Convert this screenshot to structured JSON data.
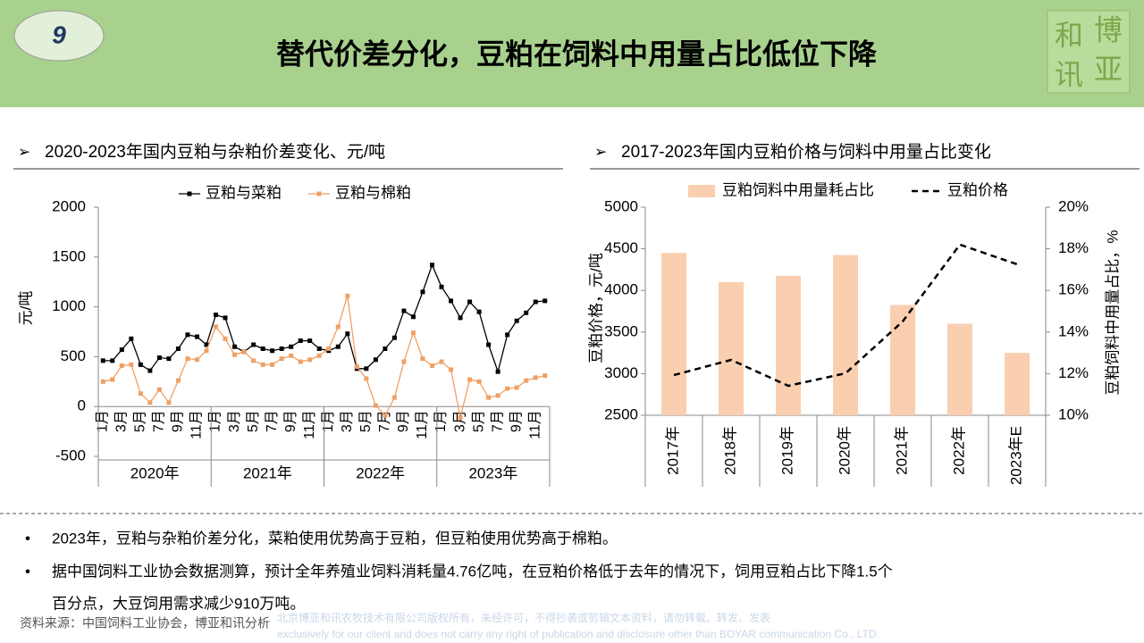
{
  "header": {
    "badge": "9",
    "title": "替代价差分化，豆粕在饲料中用量占比低位下降",
    "logo": [
      "博",
      "亚",
      "和",
      "讯"
    ]
  },
  "sections": [
    "2020-2023年国内豆粕与杂粕价差变化、元/吨",
    "2017-2023年国内豆粕价格与饲料中用量占比变化"
  ],
  "chart_data": [
    {
      "type": "line",
      "y_label": "元/吨",
      "categories": [
        "1月",
        null,
        "3月",
        null,
        "5月",
        null,
        "7月",
        null,
        "9月",
        null,
        "11月",
        null,
        "1月",
        null,
        "3月",
        null,
        "5月",
        null,
        "7月",
        null,
        "9月",
        null,
        "11月",
        null,
        "1月",
        null,
        "3月",
        null,
        "5月",
        null,
        "7月",
        null,
        "9月",
        null,
        "11月",
        null,
        "1月",
        null,
        "3月",
        null,
        "5月",
        null,
        "7月",
        null,
        "9月",
        null,
        "11月",
        null
      ],
      "groups": [
        "2020年",
        "2021年",
        "2022年",
        "2023年"
      ],
      "series": [
        {
          "name": "豆粕与菜粕",
          "color": "#000000",
          "values": [
            460,
            460,
            570,
            680,
            420,
            360,
            490,
            480,
            580,
            720,
            700,
            620,
            920,
            890,
            600,
            550,
            620,
            580,
            560,
            580,
            600,
            660,
            660,
            580,
            560,
            600,
            730,
            380,
            380,
            470,
            580,
            690,
            960,
            900,
            1150,
            1420,
            1200,
            1060,
            890,
            1050,
            950,
            620,
            350,
            720,
            860,
            940,
            1050,
            1060
          ]
        },
        {
          "name": "豆粕与棉粕",
          "color": "#f0a064",
          "values": [
            250,
            270,
            410,
            420,
            130,
            40,
            170,
            40,
            260,
            480,
            470,
            560,
            800,
            680,
            520,
            550,
            460,
            420,
            420,
            480,
            510,
            450,
            470,
            510,
            580,
            800,
            1110,
            400,
            280,
            10,
            -90,
            90,
            450,
            740,
            480,
            410,
            450,
            370,
            -110,
            270,
            250,
            90,
            110,
            180,
            190,
            260,
            290,
            310
          ]
        }
      ],
      "ylim": [
        -500,
        2000
      ],
      "yticks": [
        -500,
        0,
        500,
        1000,
        1500,
        2000
      ],
      "legend": "top"
    },
    {
      "type": "combo",
      "y_label": "豆粕价格，元/吨",
      "y2_label": "豆粕饲料中用量占比，%",
      "categories": [
        "2017年",
        "2018年",
        "2019年",
        "2020年",
        "2021年",
        "2022年",
        "2023年E"
      ],
      "series": [
        {
          "name": "豆粕饲料中用量耗占比",
          "type": "bar",
          "axis": "y2",
          "color": "#f9cfb0",
          "values": [
            17.8,
            16.4,
            16.7,
            17.7,
            15.3,
            14.4,
            13.0
          ]
        },
        {
          "name": "豆粕价格",
          "type": "line",
          "color": "#000000",
          "dashed": true,
          "values": [
            2983,
            3165,
            2854,
            3004,
            3627,
            4550,
            4314
          ]
        }
      ],
      "ylim": [
        2500,
        5000
      ],
      "yticks": [
        2500,
        3000,
        3500,
        4000,
        4500,
        5000
      ],
      "y2lim": [
        10,
        20
      ],
      "y2ticks": [
        {
          "value": 10,
          "label": "10%"
        },
        {
          "value": 12,
          "label": "12%"
        },
        {
          "value": 14,
          "label": "14%"
        },
        {
          "value": 16,
          "label": "16%"
        },
        {
          "value": 18,
          "label": "18%"
        },
        {
          "value": 20,
          "label": "20%"
        }
      ],
      "legend": "top"
    }
  ],
  "bullets": [
    "2023年，豆粕与杂粕价差分化，菜粕使用优势高于豆粕，但豆粕使用优势高于棉粕。",
    "据中国饲料工业协会数据测算，预计全年养殖业饲料消耗量4.76亿吨，在豆粕价格低于去年的情况下，饲用豆粕占比下降1.5个",
    "百分点，大豆饲用需求减少910万吨。"
  ],
  "source": "资料来源：中国饲料工业协会，博亚和讯分析",
  "copyright": [
    "北京博亚和讯农牧技术有限公司版权所有，未经许可，不得抄袭或剪辑文本资料，请勿转载、转发、发表",
    "exclusively for our client and does not carry any right of publication and disclosure other than BOYAR communication Co., LTD."
  ]
}
